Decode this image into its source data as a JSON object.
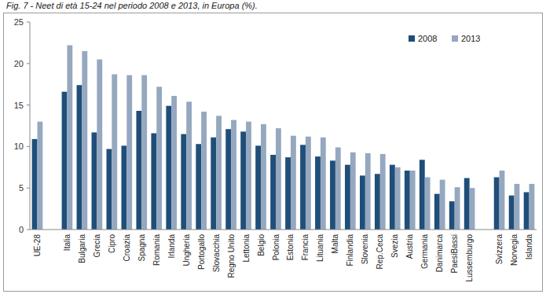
{
  "chart_data": {
    "type": "bar",
    "title": "Fig. 7 - Neet di età 15-24 nel periodo 2008 e 2013, in Europa (%).",
    "categories": [
      "UE-28",
      null,
      "Italia",
      "Bulgaria",
      "Grecia",
      "Cipro",
      "Croazia",
      "Spagna",
      "Romania",
      "Irlanda",
      "Ungheria",
      "Portogallo",
      "Slovacchia",
      "Regno Unito",
      "Lettonia",
      "Belgio",
      "Polonia",
      "Estonia",
      "Francia",
      "Lituania",
      "Malta",
      "Finlandia",
      "Slovenia",
      "Rep.Ceca",
      "Svezia",
      "Austria",
      "Germania",
      "Danimarca",
      "PaesiBassi",
      "Lussemburgo",
      null,
      "Svizzera",
      "Norvegia",
      "Islanda"
    ],
    "series": [
      {
        "name": "2008",
        "color": "#1f4e79",
        "values": [
          10.9,
          null,
          16.6,
          17.4,
          11.7,
          9.7,
          10.1,
          14.3,
          11.6,
          14.9,
          11.5,
          10.3,
          11.1,
          12.1,
          11.8,
          10.1,
          9.0,
          8.7,
          10.2,
          8.8,
          8.3,
          7.8,
          6.5,
          6.7,
          7.8,
          7.1,
          8.4,
          4.3,
          3.4,
          6.2,
          null,
          6.3,
          4.1,
          4.5
        ]
      },
      {
        "name": "2013",
        "color": "#95a8bf",
        "values": [
          13.0,
          null,
          22.2,
          21.5,
          20.5,
          18.7,
          18.6,
          18.6,
          17.2,
          16.1,
          15.4,
          14.2,
          13.7,
          13.2,
          13.0,
          12.7,
          12.2,
          11.3,
          11.2,
          11.1,
          9.9,
          9.3,
          9.2,
          9.1,
          7.5,
          7.1,
          6.3,
          6.0,
          5.1,
          5.0,
          null,
          7.1,
          5.5,
          5.5
        ]
      }
    ],
    "ylim": [
      0,
      25
    ],
    "yticks": [
      0,
      5,
      10,
      15,
      20,
      25
    ],
    "grid": false,
    "legend": "upper right"
  }
}
